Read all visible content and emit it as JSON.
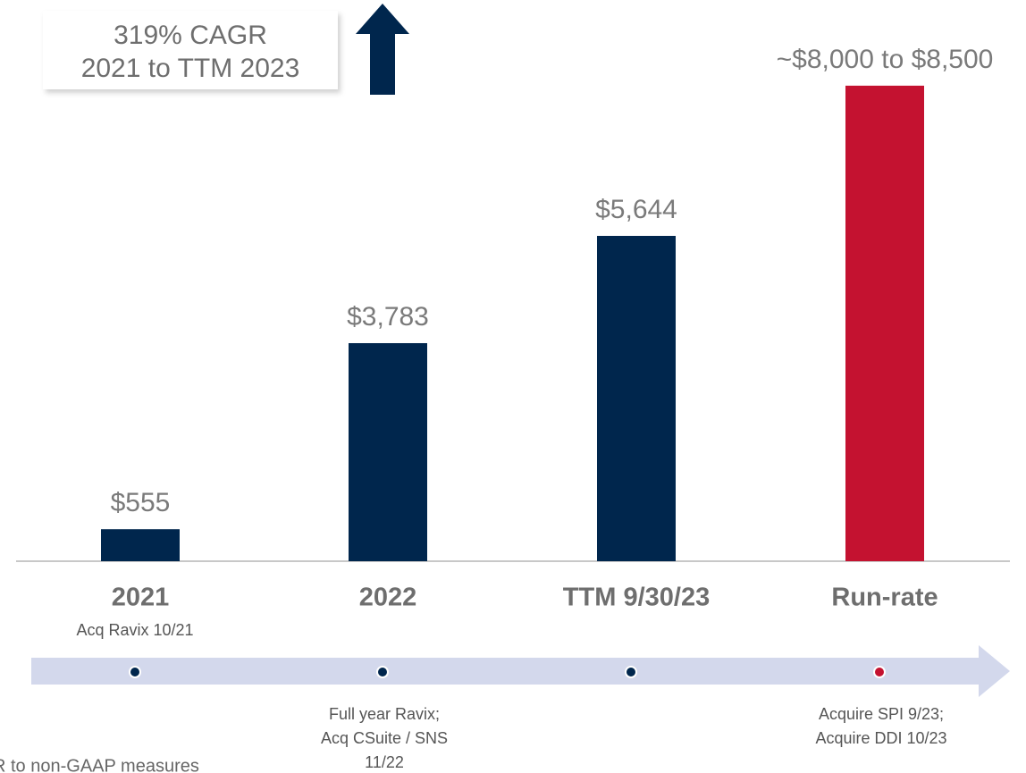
{
  "chart_data": {
    "type": "bar",
    "categories": [
      "2021",
      "2022",
      "TTM 9/30/23",
      "Run-rate"
    ],
    "values": [
      555,
      3783,
      5644,
      8250
    ],
    "value_labels": [
      "$555",
      "$3,783",
      "$5,644",
      "~$8,000 to $8,500"
    ],
    "colors": [
      "#00264d",
      "#00264d",
      "#00264d",
      "#c41230"
    ],
    "category_notes": [
      "Acq Ravix 10/21",
      null,
      null,
      null
    ],
    "timeline_notes": [
      null,
      [
        "Full year Ravix;",
        "Acq CSuite / SNS",
        "11/22"
      ],
      null,
      [
        "Acquire SPI 9/23;",
        "Acquire DDI 10/23"
      ]
    ],
    "annotation": [
      "319% CAGR",
      "2021 to TTM 2023"
    ],
    "footnote": "R to non-GAAP measures"
  }
}
